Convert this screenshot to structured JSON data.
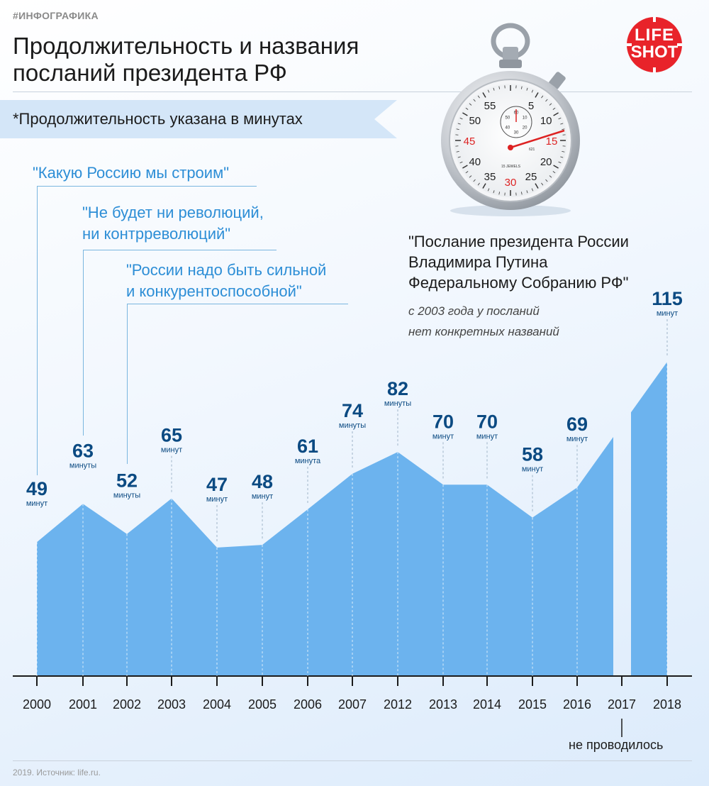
{
  "header": {
    "tag": "#ИНФОГРАФИКА",
    "title_line1": "Продолжительность и названия",
    "title_line2": "посланий президента РФ",
    "subtitle": "*Продолжительность указана в минутах"
  },
  "logo": {
    "line1": "LIFE",
    "line2": "SHOT"
  },
  "quotes": [
    {
      "lines": [
        "\"Какую Россию мы строим\""
      ],
      "year": "2000"
    },
    {
      "lines": [
        "\"Не будет ни революций,",
        "ни контрреволюций\""
      ],
      "year": "2001"
    },
    {
      "lines": [
        "\"России надо быть сильной",
        "и конкурентоспособной\""
      ],
      "year": "2002"
    }
  ],
  "note": {
    "title_lines": [
      "\"Послание президента России",
      "Владимира Путина",
      "Федеральному Собранию РФ\""
    ],
    "sub_lines": [
      "с 2003 года у посланий",
      "нет конкретных названий"
    ]
  },
  "stopwatch": {
    "outer_numbers": [
      "55",
      "5",
      "10",
      "15",
      "20",
      "25",
      "30",
      "35",
      "40",
      "45",
      "50"
    ],
    "inner_numbers": [
      "60",
      "10",
      "20",
      "30",
      "40",
      "50"
    ],
    "jewels": "15 JEWELS",
    "code": "621"
  },
  "not_held_label": "не проводилось",
  "footer": "2019. Источник: life.ru.",
  "colors": {
    "area": "#6cb3ee",
    "value": "#0b4a82",
    "quote": "#2d8ed6",
    "logo": "#e8232a"
  },
  "chart_data": {
    "type": "area",
    "ylabel": "",
    "xlabel": "",
    "categories": [
      "2000",
      "2001",
      "2002",
      "2003",
      "2004",
      "2005",
      "2006",
      "2007",
      "2012",
      "2013",
      "2014",
      "2015",
      "2016",
      "2017",
      "2018"
    ],
    "values": [
      49,
      63,
      52,
      65,
      47,
      48,
      61,
      74,
      82,
      70,
      70,
      58,
      69,
      null,
      115
    ],
    "units": [
      "минут",
      "минуты",
      "минуты",
      "минут",
      "минут",
      "минут",
      "минута",
      "минуты",
      "минуты",
      "минут",
      "минут",
      "минут",
      "минут",
      "",
      "минут"
    ],
    "ylim": [
      0,
      115
    ],
    "grid": false
  }
}
